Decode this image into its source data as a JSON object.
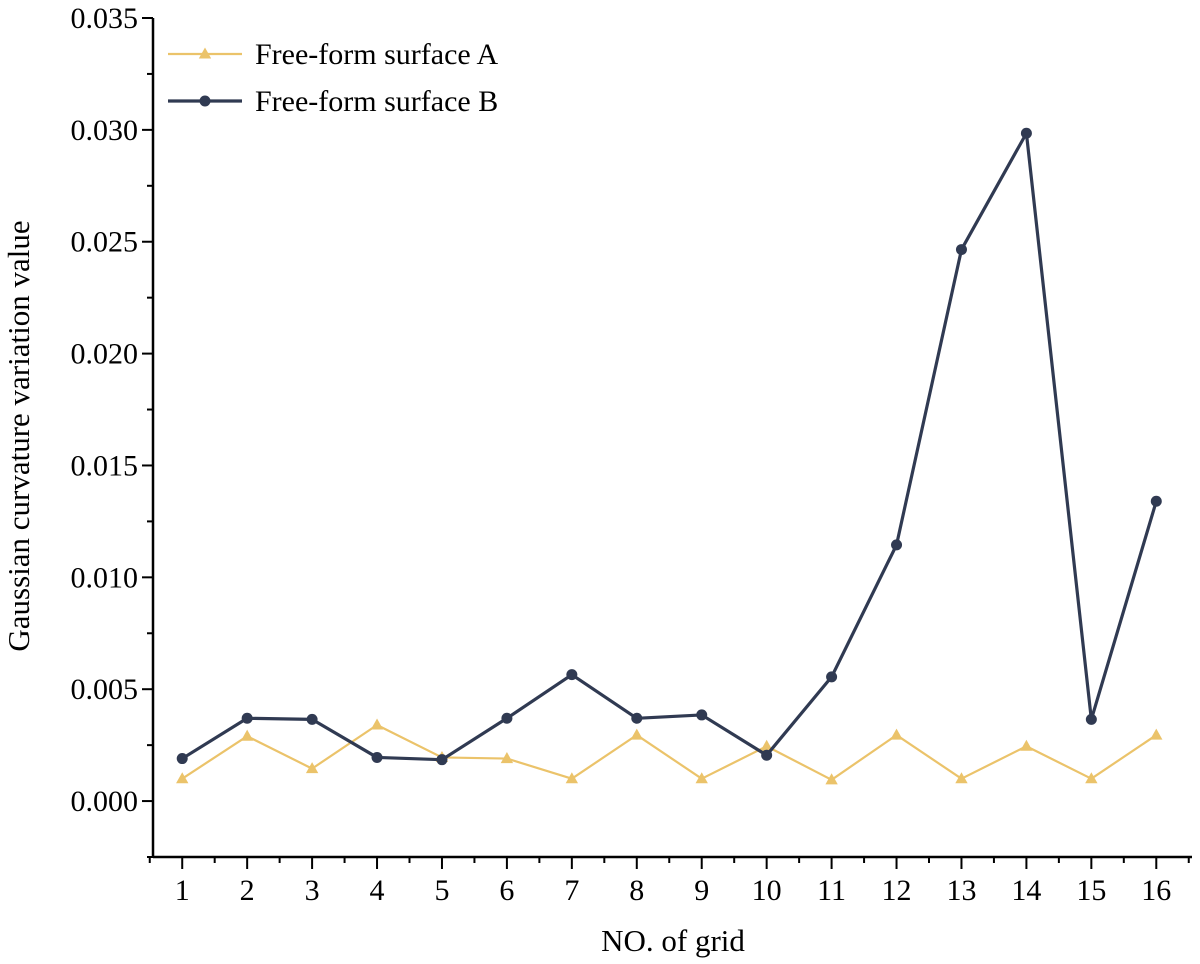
{
  "chart_data": {
    "type": "line",
    "title": "",
    "xlabel": "NO. of grid",
    "ylabel": "Gaussian curvature variation value",
    "x": [
      1,
      2,
      3,
      4,
      5,
      6,
      7,
      8,
      9,
      10,
      11,
      12,
      13,
      14,
      15,
      16
    ],
    "xlim": [
      0.55,
      16.55
    ],
    "ylim": [
      -0.0025,
      0.035
    ],
    "yticks": [
      "0.000",
      "0.005",
      "0.010",
      "0.015",
      "0.020",
      "0.025",
      "0.030",
      "0.035"
    ],
    "grid": false,
    "legend_position": "top-left",
    "series": [
      {
        "name": "Free-form surface A",
        "color": "#EBC36A",
        "marker": "triangle",
        "values": [
          0.001,
          0.0029,
          0.00145,
          0.0034,
          0.00195,
          0.0019,
          0.001,
          0.00295,
          0.001,
          0.00245,
          0.00095,
          0.00295,
          0.001,
          0.00245,
          0.001,
          0.00295
        ]
      },
      {
        "name": "Free-form surface B",
        "color": "#303A52",
        "marker": "circle",
        "values": [
          0.0019,
          0.0037,
          0.00365,
          0.00195,
          0.00185,
          0.0037,
          0.00565,
          0.0037,
          0.00385,
          0.00205,
          0.00555,
          0.01145,
          0.02465,
          0.02985,
          0.00365,
          0.0134
        ]
      }
    ]
  }
}
